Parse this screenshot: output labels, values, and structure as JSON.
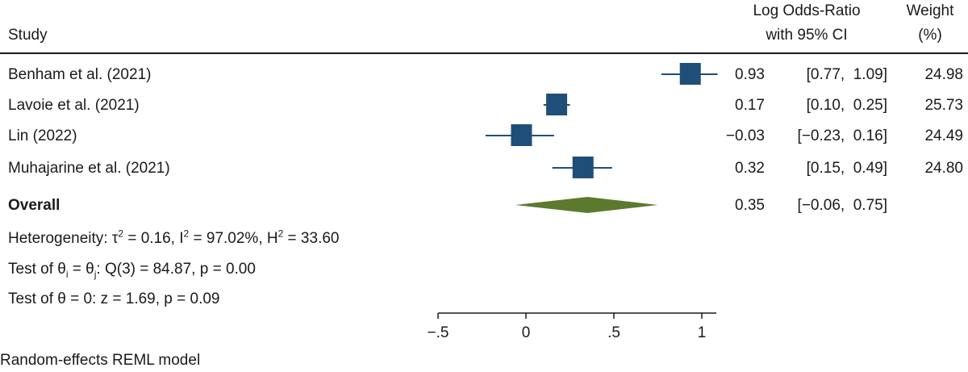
{
  "header": {
    "study": "Study",
    "effect_line1": "Log Odds-Ratio",
    "effect_line2": "with 95% CI",
    "weight_line1": "Weight",
    "weight_line2": "(%)"
  },
  "stats": {
    "heterogeneity": {
      "prefix": "Heterogeneity: τ",
      "sup1": "2",
      "mid1": " = 0.16, I",
      "sup2": "2",
      "mid2": " = 97.02%, H",
      "sup3": "2",
      "tail": " = 33.60"
    },
    "test_equal": {
      "prefix": "Test of θ",
      "sub1": "i",
      "mid": " = θ",
      "sub2": "j",
      "tail": ": Q(3) = 84.87, p = 0.00"
    },
    "test_zero": "Test of θ = 0: z = 1.69, p = 0.09"
  },
  "footer": "Random-effects REML model",
  "colors": {
    "marker": "#1f4e79",
    "diamond": "#5b7a2e",
    "ink": "#1a1a1a"
  },
  "chart_data": {
    "type": "forest",
    "xlim": [
      -0.5,
      1
    ],
    "ticks": [
      {
        "value": -0.5,
        "label": "−.5"
      },
      {
        "value": 0,
        "label": "0"
      },
      {
        "value": 0.5,
        "label": ".5"
      },
      {
        "value": 1,
        "label": "1"
      }
    ],
    "studies": [
      {
        "name": "Benham et al. (2021)",
        "estimate": 0.93,
        "lower": 0.77,
        "upper": 1.09,
        "est_label": "0.93",
        "ci_label": "[0.77,  1.09]",
        "weight": "24.98"
      },
      {
        "name": "Lavoie et al. (2021)",
        "estimate": 0.17,
        "lower": 0.1,
        "upper": 0.25,
        "est_label": "0.17",
        "ci_label": "[0.10,  0.25]",
        "weight": "25.73"
      },
      {
        "name": "Lin (2022)",
        "estimate": -0.03,
        "lower": -0.23,
        "upper": 0.16,
        "est_label": "−0.03",
        "ci_label": "[−0.23,  0.16]",
        "weight": "24.49"
      },
      {
        "name": "Muhajarine et al. (2021)",
        "estimate": 0.32,
        "lower": 0.15,
        "upper": 0.49,
        "est_label": "0.32",
        "ci_label": "[0.15,  0.49]",
        "weight": "24.80"
      }
    ],
    "overall": {
      "name": "Overall",
      "estimate": 0.35,
      "lower": -0.06,
      "upper": 0.75,
      "est_label": "0.35",
      "ci_label": "[−0.06,  0.75]"
    }
  }
}
